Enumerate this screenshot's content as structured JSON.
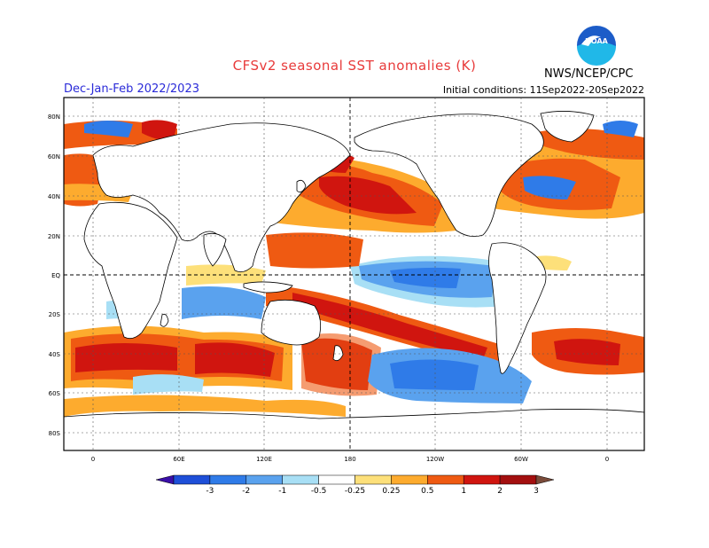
{
  "header": {
    "title": "CFSv2 seasonal SST anomalies (K)",
    "season": "Dec-Jan-Feb 2022/2023",
    "initial_conditions": "Initial conditions: 11Sep2022-20Sep2022",
    "organization": "NWS/NCEP/CPC",
    "logo_text": "NOAA"
  },
  "map": {
    "lat_labels": [
      "80N",
      "60N",
      "40N",
      "20N",
      "EQ",
      "20S",
      "40S",
      "60S",
      "80S"
    ],
    "lon_labels": [
      "0",
      "60E",
      "120E",
      "180",
      "120W",
      "60W",
      "0"
    ]
  },
  "colorbar": {
    "labels": [
      "-3",
      "-2",
      "-1",
      "-0.5",
      "-0.25",
      "0.25",
      "0.5",
      "1",
      "2",
      "3"
    ],
    "colors": [
      "#3a0fa8",
      "#1e4fd8",
      "#2f7be8",
      "#5aa2ee",
      "#a8dff5",
      "#ffffff",
      "#fde07a",
      "#fdab2e",
      "#ef5a12",
      "#d0150f",
      "#a30f0f",
      "#7a4b3a"
    ]
  }
}
